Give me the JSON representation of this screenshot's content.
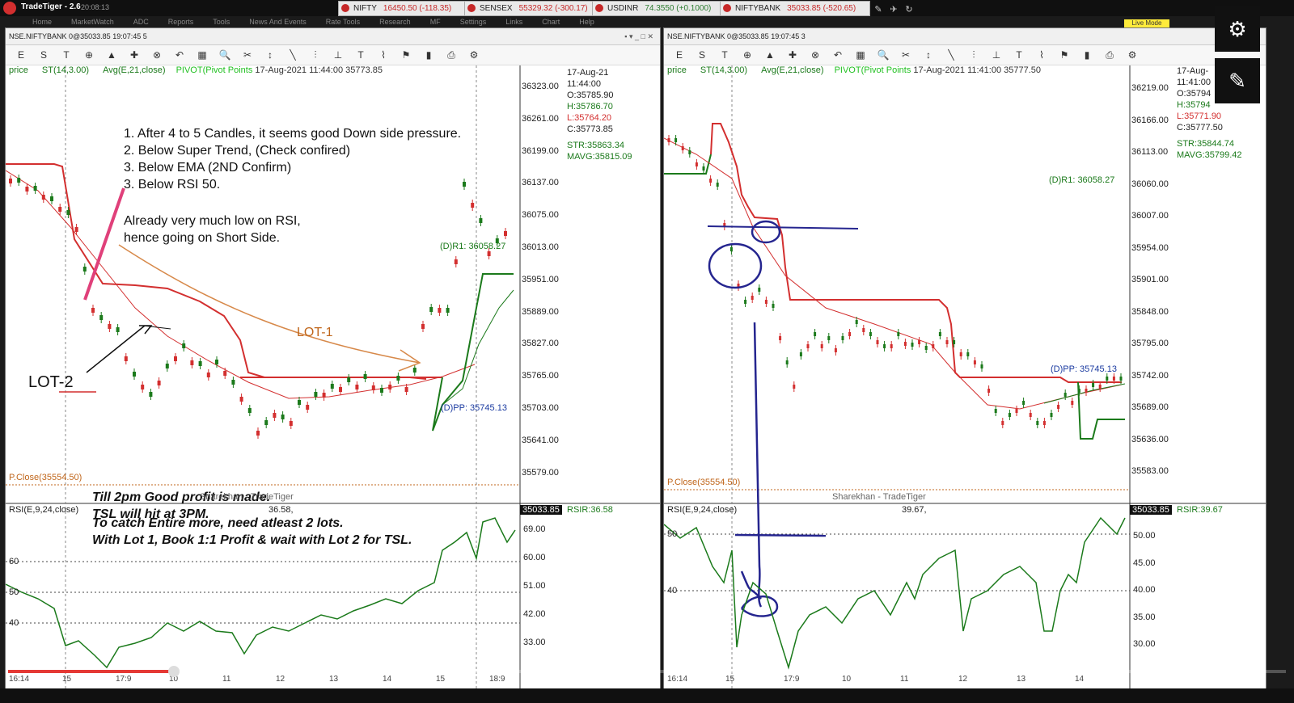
{
  "app": {
    "name": "TradeTiger - 2.6",
    "clock": "20:08:13"
  },
  "menu": [
    "Home",
    "MarketWatch",
    "ADC",
    "Reports",
    "Tools",
    "News And Events",
    "Rate Tools",
    "Research",
    "MF",
    "Settings",
    "Links",
    "Chart",
    "Help"
  ],
  "tickers": [
    {
      "name": "NIFTY",
      "value": "16450.50 (-118.35)",
      "up": false
    },
    {
      "name": "SENSEX",
      "value": "55329.32 (-300.17)",
      "up": false
    },
    {
      "name": "USDINR",
      "value": "74.3550 (+0.1000)",
      "up": true
    },
    {
      "name": "NIFTYBANK",
      "value": "35033.85 (-520.65)",
      "up": false
    }
  ],
  "live_mode": "Live Mode",
  "left": {
    "header": "NSE.NIFTYBANK 0@35033.85 19:07:45 5",
    "legend": {
      "price": "price",
      "st": "ST(14,3.00)",
      "avg": "Avg(E,21,close)",
      "pivot": "PIVOT(Pivot Points",
      "datetime": "17-Aug-2021 11:44:00 35773.85"
    },
    "ohlc": {
      "date": "17-Aug-21",
      "time": "11:44:00",
      "o": "O:35785.90",
      "h": "H:35786.70",
      "l": "L:35764.20",
      "c": "C:35773.85",
      "str": "STR:35863.34",
      "mavg": "MAVG:35815.09"
    },
    "y_labels": [
      "36323.00",
      "36261.00",
      "36199.00",
      "36137.00",
      "36075.00",
      "36013.00",
      "35951.00",
      "35889.00",
      "35827.00",
      "35765.00",
      "35703.00",
      "35641.00",
      "35579.00"
    ],
    "rsi_y": [
      "69.00",
      "60.00",
      "51.00",
      "42.00",
      "33.00"
    ],
    "rsi_levels": [
      "60",
      "50",
      "40"
    ],
    "notes": [
      "1. After 4 to 5 Candles, it seems good Down side pressure.",
      "2. Below Super Trend, (Check confired)",
      "3. Below EMA (2ND Confirm)",
      "3. Below RSI 50."
    ],
    "note_rsi": [
      "Already very much low on RSI,",
      "hence going on Short Side."
    ],
    "lot1": "LOT-1",
    "lot2": "LOT-2",
    "profit": [
      "Till 2pm Good profit is made.",
      "TSL will hit at 3PM."
    ],
    "catch": [
      "To catch Entire more, need atleast 2 lots.",
      "With Lot 1, Book 1:1 Profit & wait with Lot 2 for TSL."
    ],
    "r1": "(D)R1: 36058.27",
    "pp": "(D)PP: 35745.13",
    "pclose": "P.Close(35554.50)",
    "watermark": "Sharekhan - TradeTiger",
    "rsi_label": "RSI(E,9,24,close)",
    "rsi_mid": "36.58,",
    "rsi_box": "35033.85",
    "rsi_right": "RSIR:36.58",
    "x_labels": [
      "16:14",
      "15",
      "17:9",
      "10",
      "11",
      "12",
      "13",
      "14",
      "15",
      "18:9"
    ]
  },
  "right": {
    "header": "NSE.NIFTYBANK 0@35033.85 19:07:45 3",
    "legend": {
      "price": "price",
      "st": "ST(14,3.00)",
      "avg": "Avg(E,21,close)",
      "pivot": "PIVOT(Pivot Points",
      "datetime": "17-Aug-2021 11:41:00 35777.50"
    },
    "ohlc": {
      "date": "17-Aug-",
      "time": "11:41:00",
      "o": "O:35794",
      "h": "H:35794",
      "l": "L:35771.90",
      "c": "C:35777.50",
      "str": "STR:35844.74",
      "mavg": "MAVG:35799.42"
    },
    "y_labels": [
      "36219.00",
      "36166.00",
      "36113.00",
      "36060.00",
      "36007.00",
      "35954.00",
      "35901.00",
      "35848.00",
      "35795.00",
      "35742.00",
      "35689.00",
      "35636.00",
      "35583.00"
    ],
    "rsi_y": [
      "50.00",
      "45.00",
      "40.00",
      "35.00",
      "30.00"
    ],
    "rsi_levels": [
      "50",
      "40"
    ],
    "r1": "(D)R1: 36058.27",
    "pp": "(D)PP: 35745.13",
    "pclose": "P.Close(35554.50)",
    "watermark": "Sharekhan - TradeTiger",
    "rsi_label": "RSI(E,9,24,close)",
    "rsi_mid": "39.67,",
    "rsi_box": "35033.85",
    "rsi_right": "RSIR:39.67",
    "x_labels": [
      "16:14",
      "15",
      "17:9",
      "10",
      "11",
      "12",
      "13",
      "14"
    ]
  },
  "video": {
    "played_fraction": 0.13
  }
}
